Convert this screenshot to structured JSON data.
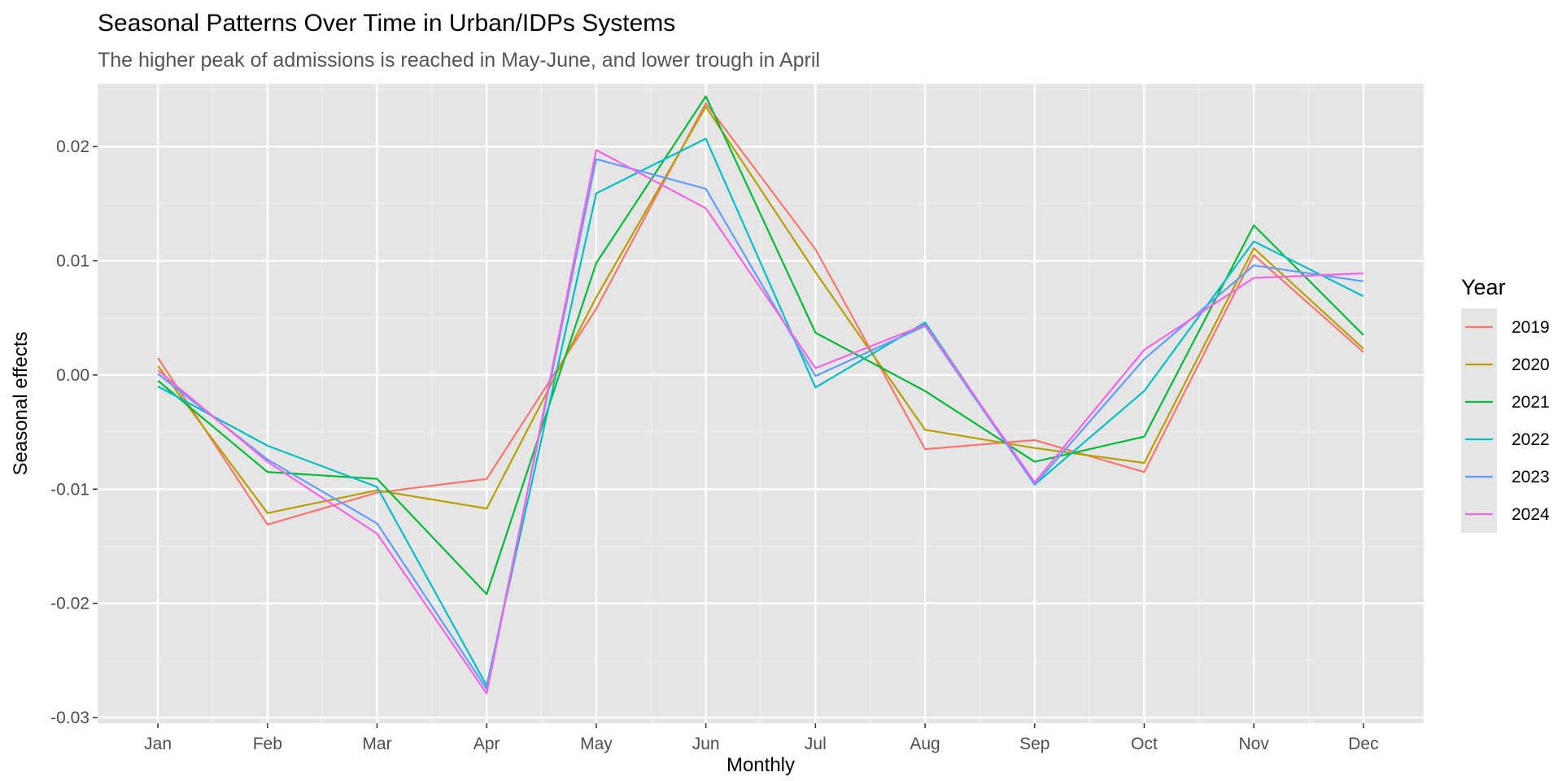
{
  "chart_data": {
    "type": "line",
    "title": "Seasonal Patterns Over Time in Urban/IDPs Systems",
    "subtitle": "The higher peak of admissions is reached in May-June, and lower trough in April",
    "xlabel": "Monthly",
    "ylabel": "Seasonal effects",
    "categories": [
      "Jan",
      "Feb",
      "Mar",
      "Apr",
      "May",
      "Jun",
      "Jul",
      "Aug",
      "Sep",
      "Oct",
      "Nov",
      "Dec"
    ],
    "ylim": [
      -0.0305,
      0.0255
    ],
    "y_ticks": [
      -0.03,
      -0.02,
      -0.01,
      0.0,
      0.01,
      0.02
    ],
    "y_tick_labels": [
      "-0.03",
      "-0.02",
      "-0.01",
      "0.00",
      "0.01",
      "0.02"
    ],
    "grid": true,
    "legend": {
      "title": "Year",
      "position": "right"
    },
    "series": [
      {
        "name": "2019",
        "color": "#F8766D",
        "values": [
          0.0015,
          -0.0131,
          -0.0103,
          -0.0091,
          0.0058,
          0.0238,
          0.011,
          -0.0065,
          -0.0057,
          -0.0085,
          0.0105,
          0.002
        ]
      },
      {
        "name": "2020",
        "color": "#B79F00",
        "values": [
          0.0008,
          -0.0121,
          -0.0101,
          -0.0117,
          0.0068,
          0.0235,
          0.009,
          -0.0048,
          -0.0064,
          -0.0077,
          0.0111,
          0.0023
        ]
      },
      {
        "name": "2021",
        "color": "#00BA38",
        "values": [
          -0.0005,
          -0.0085,
          -0.0091,
          -0.0192,
          0.0098,
          0.0244,
          0.0037,
          -0.0014,
          -0.0076,
          -0.0054,
          0.0131,
          0.0035
        ]
      },
      {
        "name": "2022",
        "color": "#00BFC4",
        "values": [
          -0.001,
          -0.0062,
          -0.0098,
          -0.0272,
          0.0159,
          0.0207,
          -0.0011,
          0.0046,
          -0.0096,
          -0.0014,
          0.0117,
          0.0069
        ]
      },
      {
        "name": "2023",
        "color": "#619CFF",
        "values": [
          0.0001,
          -0.0074,
          -0.013,
          -0.0275,
          0.0189,
          0.0163,
          -0.0001,
          0.0043,
          -0.0096,
          0.0014,
          0.0096,
          0.0082
        ]
      },
      {
        "name": "2024",
        "color": "#F564E3",
        "values": [
          0.0004,
          -0.0076,
          -0.0139,
          -0.0279,
          0.0197,
          0.0146,
          0.0006,
          0.0044,
          -0.0094,
          0.0022,
          0.0085,
          0.0089
        ]
      }
    ]
  }
}
